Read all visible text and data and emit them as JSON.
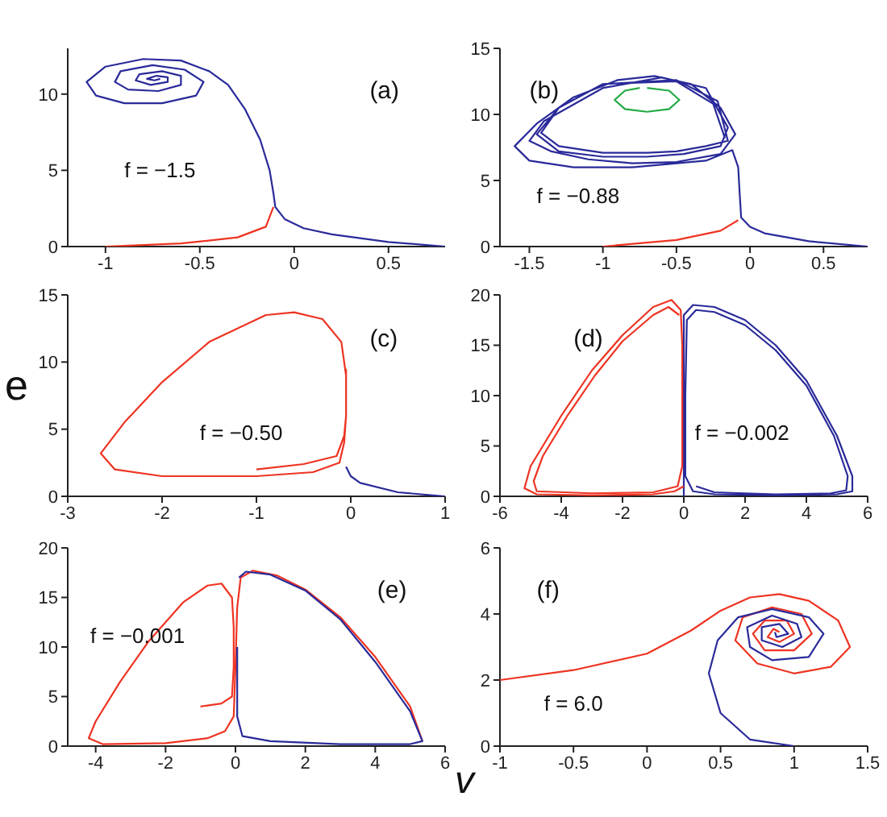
{
  "chart_data": [
    {
      "type": "line",
      "annotations": [
        "(a)",
        "f = −1.5"
      ],
      "xlim": [
        -1.2,
        0.8
      ],
      "xticks": [
        -1,
        -0.5,
        0,
        0.5
      ],
      "ylim": [
        0,
        13
      ],
      "yticks": [
        0,
        5,
        10
      ],
      "marker": "none",
      "line_style": "solid",
      "series": [
        {
          "color": "#ee3322",
          "x": [
            -1,
            -0.6,
            -0.3,
            -0.15,
            -0.11
          ],
          "values": [
            0,
            0.2,
            0.6,
            1.3,
            2.6
          ]
        },
        {
          "color": "#2a2a9a",
          "x": [
            0.8,
            0.5,
            0.2,
            0.05,
            -0.05,
            -0.1,
            -0.11,
            -0.13,
            -0.18,
            -0.26,
            -0.35,
            -0.45,
            -0.6,
            -0.8,
            -1,
            -1.1,
            -1.05,
            -0.9,
            -0.7,
            -0.52,
            -0.48,
            -0.58,
            -0.75,
            -0.92,
            -0.95,
            -0.88,
            -0.72,
            -0.6,
            -0.6,
            -0.7,
            -0.82,
            -0.84,
            -0.76,
            -0.67,
            -0.67,
            -0.73,
            -0.78,
            -0.74,
            -0.71
          ],
          "values": [
            0,
            0.3,
            0.8,
            1.2,
            1.8,
            2.6,
            3.5,
            5,
            7,
            9,
            10.6,
            11.5,
            12.2,
            12.3,
            11.8,
            10.8,
            9.9,
            9.4,
            9.4,
            9.9,
            10.8,
            11.6,
            11.9,
            11.5,
            10.8,
            10.3,
            10.2,
            10.6,
            11.2,
            11.5,
            11.3,
            10.9,
            10.6,
            10.8,
            11.1,
            11.2,
            11,
            10.9,
            11
          ]
        }
      ]
    },
    {
      "type": "line",
      "annotations": [
        "(b)",
        "f = −0.88"
      ],
      "xlim": [
        -1.7,
        0.8
      ],
      "xticks": [
        -1.5,
        -1,
        -0.5,
        0,
        0.5
      ],
      "ylim": [
        0,
        15
      ],
      "yticks": [
        0,
        5,
        10,
        15
      ],
      "marker": "none",
      "line_style": "solid",
      "series": [
        {
          "color": "#ee3322",
          "x": [
            -1,
            -0.5,
            -0.2,
            -0.08
          ],
          "values": [
            0,
            0.5,
            1.2,
            2
          ]
        },
        {
          "color": "#2a2a9a",
          "x": [
            0.8,
            0.4,
            0.1,
            0,
            -0.06,
            -0.07,
            -0.08,
            -0.12,
            -0.3,
            -0.8,
            -1.2,
            -1.5,
            -1.6,
            -1.45,
            -1.2,
            -0.9,
            -0.65,
            -0.4,
            -0.2,
            -0.1,
            -0.2,
            -0.5,
            -0.8,
            -1.1,
            -1.35,
            -1.5,
            -1.4,
            -1,
            -0.6,
            -0.3,
            -0.15,
            -0.2,
            -0.45,
            -0.7,
            -1,
            -1.3,
            -1.45,
            -1.3,
            -1,
            -0.5,
            -0.22,
            -0.15,
            -0.3,
            -0.5,
            -0.7,
            -1,
            -1.3,
            -1.42,
            -1.3,
            -1,
            -0.5,
            -0.25,
            -0.17
          ],
          "values": [
            0,
            0.4,
            1,
            1.5,
            2.2,
            4,
            6,
            7.3,
            6.5,
            6,
            6,
            6.5,
            7.6,
            9.3,
            11.3,
            12.6,
            12.9,
            12.3,
            10.5,
            8.5,
            7,
            6.4,
            6.3,
            6.6,
            7.2,
            8,
            9.5,
            12,
            12.8,
            12,
            9,
            7.6,
            7,
            6.8,
            6.8,
            7.2,
            8.5,
            10.5,
            12.3,
            12.6,
            11,
            8,
            7.6,
            7.2,
            7.1,
            7.1,
            7.6,
            8.6,
            10.5,
            12.3,
            12.5,
            10.8,
            8.2
          ]
        },
        {
          "color": "#22aa44",
          "x": [
            -0.7,
            -0.55,
            -0.48,
            -0.55,
            -0.7,
            -0.85,
            -0.92,
            -0.85,
            -0.75
          ],
          "values": [
            12,
            11.8,
            11.1,
            10.4,
            10.2,
            10.4,
            11.1,
            11.8,
            12
          ]
        }
      ]
    },
    {
      "type": "line",
      "ylabel": "e",
      "annotations": [
        "(c)",
        "f = −0.50"
      ],
      "xlim": [
        -3,
        1
      ],
      "xticks": [
        -3,
        -2,
        -1,
        0,
        1
      ],
      "ylim": [
        0,
        15
      ],
      "yticks": [
        0,
        5,
        10,
        15
      ],
      "marker": "none",
      "line_style": "solid",
      "series": [
        {
          "color": "#2a2a9a",
          "x": [
            1,
            0.5,
            0.1,
            0,
            -0.05
          ],
          "values": [
            0,
            0.3,
            1,
            1.5,
            2.2
          ]
        },
        {
          "color": "#ee3322",
          "x": [
            -1,
            -0.5,
            -0.15,
            -0.07,
            -0.05,
            -0.05,
            -0.1,
            -0.3,
            -0.6,
            -0.9,
            -1.5,
            -2,
            -2.4,
            -2.65,
            -2.5,
            -2,
            -1,
            -0.4,
            -0.12,
            -0.07,
            -0.05,
            -0.05
          ],
          "values": [
            2,
            2.4,
            3,
            4.5,
            6,
            9,
            11.5,
            13.2,
            13.7,
            13.5,
            11.5,
            8.5,
            5.5,
            3.2,
            2,
            1.5,
            1.5,
            1.8,
            2.5,
            4,
            6,
            9.5
          ]
        }
      ]
    },
    {
      "type": "line",
      "annotations": [
        "(d)",
        "f = −0.002"
      ],
      "xlim": [
        -6,
        6
      ],
      "xticks": [
        -6,
        -4,
        -2,
        0,
        2,
        4,
        6
      ],
      "ylim": [
        0,
        20
      ],
      "yticks": [
        0,
        5,
        10,
        15,
        20
      ],
      "marker": "none",
      "line_style": "solid",
      "series": [
        {
          "color": "#2a2a9a",
          "x": [
            0,
            0,
            0,
            0,
            0,
            0.3,
            1,
            2,
            3,
            4,
            5,
            5.5,
            5.5,
            5,
            3,
            1,
            0.3,
            0.05,
            0.05,
            0.1,
            0.4,
            1,
            2,
            3,
            4,
            4.9,
            5.35,
            5.3,
            4.8,
            3,
            1,
            0.4
          ],
          "values": [
            0,
            5,
            10,
            15,
            18,
            19,
            18.8,
            17.5,
            15,
            11.5,
            6,
            2,
            0.5,
            0.2,
            0.1,
            0.2,
            0.5,
            2,
            10,
            17.5,
            18.5,
            18.3,
            17,
            14.5,
            11,
            6,
            2,
            0.6,
            0.3,
            0.2,
            0.4,
            1
          ]
        },
        {
          "color": "#ee3322",
          "x": [
            0,
            -0.3,
            -1,
            -3,
            -4.8,
            -5.2,
            -5,
            -4,
            -3,
            -2,
            -1,
            -0.4,
            -0.1,
            -0.05,
            -0.05,
            -0.2,
            -1,
            -3,
            -4.8,
            -4.9,
            -4.6,
            -3.8,
            -2.9,
            -2,
            -1,
            -0.5,
            -0.15
          ],
          "values": [
            1,
            0.5,
            0.2,
            0.1,
            0.2,
            0.8,
            3,
            8,
            12.5,
            16,
            18.8,
            19.5,
            18.5,
            15,
            3,
            1,
            0.4,
            0.3,
            0.5,
            1.5,
            4,
            8,
            12,
            15.4,
            18,
            18.8,
            18
          ]
        }
      ]
    },
    {
      "type": "line",
      "xlabel": "v",
      "annotations": [
        "(e)",
        "f = −0.001"
      ],
      "xlim": [
        -4.8,
        6
      ],
      "xticks": [
        -4,
        -2,
        0,
        2,
        4,
        6
      ],
      "ylim": [
        0,
        20
      ],
      "yticks": [
        0,
        5,
        10,
        15,
        20
      ],
      "marker": "none",
      "line_style": "solid",
      "series": [
        {
          "color": "#ee3322",
          "x": [
            -1,
            -0.4,
            -0.1,
            -0.05,
            -0.05,
            -0.1,
            -0.4,
            -0.8,
            -1.5,
            -2.5,
            -3.3,
            -4,
            -4.2,
            -3.8,
            -2,
            -0.8,
            -0.3,
            -0.05,
            0,
            0.05,
            0.15,
            0.5,
            1.2,
            2,
            3,
            4,
            5,
            5.35
          ],
          "values": [
            4,
            4.3,
            5,
            8,
            12,
            15,
            16.4,
            16.2,
            14.5,
            10.5,
            6.5,
            2.5,
            0.8,
            0.2,
            0.3,
            0.8,
            1.5,
            3,
            8,
            14,
            17,
            17.7,
            17.2,
            15.8,
            13,
            9,
            4,
            0.5
          ]
        },
        {
          "color": "#2a2a9a",
          "x": [
            0.1,
            0.3,
            1,
            2,
            3,
            4,
            5,
            5.35,
            5,
            3,
            1,
            0.2,
            0.05,
            0.05
          ],
          "values": [
            17,
            17.6,
            17.3,
            15.7,
            12.8,
            8.5,
            3.5,
            0.5,
            0.2,
            0.2,
            0.5,
            1,
            3,
            10
          ]
        }
      ]
    },
    {
      "type": "line",
      "annotations": [
        "(f)",
        "f = 6.0"
      ],
      "xlim": [
        -1,
        1.5
      ],
      "xticks": [
        -1,
        -0.5,
        0,
        0.5,
        1,
        1.5
      ],
      "ylim": [
        0,
        6
      ],
      "yticks": [
        0,
        2,
        4,
        6
      ],
      "marker": "none",
      "line_style": "solid",
      "series": [
        {
          "color": "#ee3322",
          "x": [
            -1,
            -0.5,
            0,
            0.3,
            0.5,
            0.7,
            0.9,
            1.1,
            1.3,
            1.38,
            1.25,
            1,
            0.75,
            0.6,
            0.65,
            0.85,
            1.05,
            1.12,
            1,
            0.8,
            0.72,
            0.8,
            0.95,
            1,
            0.9,
            0.82,
            0.86,
            0.9
          ],
          "values": [
            2,
            2.3,
            2.8,
            3.5,
            4.1,
            4.5,
            4.6,
            4.4,
            3.8,
            3,
            2.4,
            2.2,
            2.5,
            3.2,
            3.9,
            4.2,
            4,
            3.4,
            2.9,
            2.9,
            3.4,
            3.8,
            3.8,
            3.4,
            3.15,
            3.3,
            3.55,
            3.45
          ]
        },
        {
          "color": "#2a2a9a",
          "x": [
            1,
            0.7,
            0.5,
            0.42,
            0.48,
            0.62,
            0.85,
            1.1,
            1.2,
            1.1,
            0.85,
            0.7,
            0.68,
            0.85,
            1.02,
            1.05,
            0.92,
            0.78,
            0.78,
            0.9,
            0.96,
            0.88,
            0.87
          ],
          "values": [
            0,
            0.2,
            1,
            2.2,
            3.2,
            3.9,
            4.15,
            3.9,
            3.4,
            2.7,
            2.6,
            3,
            3.6,
            3.95,
            3.7,
            3.3,
            3,
            3.2,
            3.6,
            3.7,
            3.4,
            3.3,
            3.45
          ]
        }
      ]
    }
  ]
}
